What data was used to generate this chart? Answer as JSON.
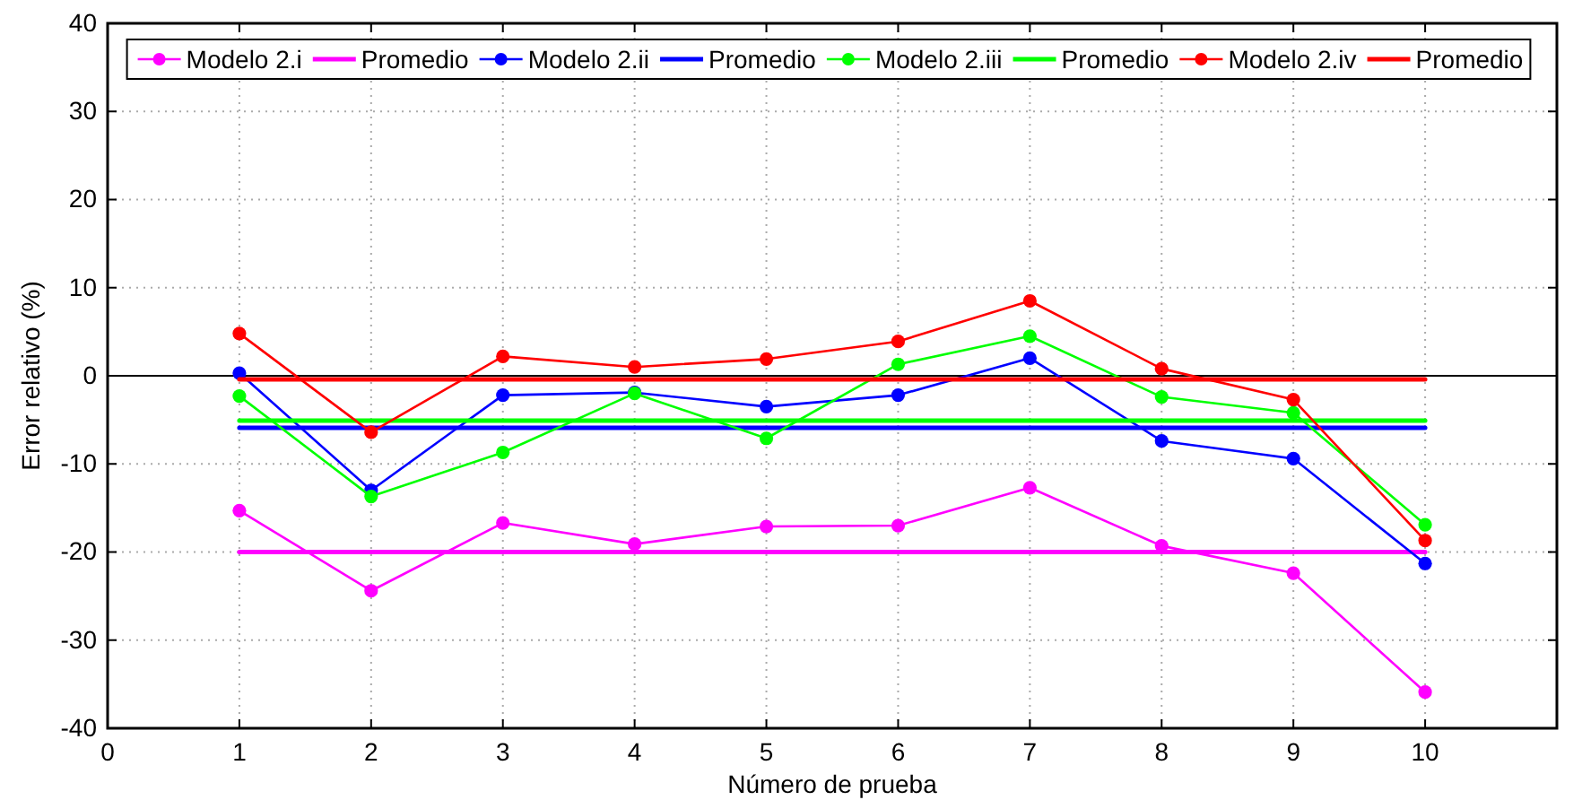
{
  "chart_data": {
    "type": "line",
    "xlabel": "Número de prueba",
    "ylabel": "Error relativo (%)",
    "x": [
      1,
      2,
      3,
      4,
      5,
      6,
      7,
      8,
      9,
      10
    ],
    "xlim": [
      0,
      11
    ],
    "xticks": [
      0,
      1,
      2,
      3,
      4,
      5,
      6,
      7,
      8,
      9,
      10
    ],
    "ylim": [
      -40,
      40
    ],
    "yticks": [
      -40,
      -30,
      -20,
      -10,
      0,
      10,
      20,
      30,
      40
    ],
    "grid": true,
    "legend": "top",
    "marker": "circle",
    "line_style": "solid",
    "ref_lines": [
      {
        "axis": "y",
        "value": 0,
        "color": "#000000"
      }
    ],
    "series": [
      {
        "name": "Modelo 2.i",
        "color": "#ff00ff",
        "values": [
          -15.3,
          -24.4,
          -16.7,
          -19.1,
          -17.1,
          -17.0,
          -12.7,
          -19.3,
          -22.4,
          -35.9
        ]
      },
      {
        "name": "Promedio",
        "color": "#ff00ff",
        "values": [
          -20.0,
          -20.0,
          -20.0,
          -20.0,
          -20.0,
          -20.0,
          -20.0,
          -20.0,
          -20.0,
          -20.0
        ],
        "marker": "none"
      },
      {
        "name": "Modelo 2.ii",
        "color": "#0000ff",
        "values": [
          0.3,
          -13.0,
          -2.2,
          -1.9,
          -3.5,
          -2.2,
          2.0,
          -7.4,
          -9.4,
          -21.3
        ]
      },
      {
        "name": "Promedio",
        "color": "#0000ff",
        "values": [
          -5.9,
          -5.9,
          -5.9,
          -5.9,
          -5.9,
          -5.9,
          -5.9,
          -5.9,
          -5.9,
          -5.9
        ],
        "marker": "none"
      },
      {
        "name": "Modelo 2.iii",
        "color": "#00ff00",
        "values": [
          -2.3,
          -13.7,
          -8.7,
          -2.0,
          -7.1,
          1.3,
          4.5,
          -2.4,
          -4.2,
          -16.9
        ]
      },
      {
        "name": "Promedio",
        "color": "#00ff00",
        "values": [
          -5.1,
          -5.1,
          -5.1,
          -5.1,
          -5.1,
          -5.1,
          -5.1,
          -5.1,
          -5.1,
          -5.1
        ],
        "marker": "none"
      },
      {
        "name": "Modelo 2.iv",
        "color": "#ff0000",
        "values": [
          4.8,
          -6.4,
          2.2,
          1.0,
          1.9,
          3.9,
          8.5,
          0.8,
          -2.7,
          -18.7
        ]
      },
      {
        "name": "Promedio",
        "color": "#ff0000",
        "values": [
          -0.4,
          -0.4,
          -0.4,
          -0.4,
          -0.4,
          -0.4,
          -0.4,
          -0.4,
          -0.4,
          -0.4
        ],
        "marker": "none"
      }
    ]
  }
}
